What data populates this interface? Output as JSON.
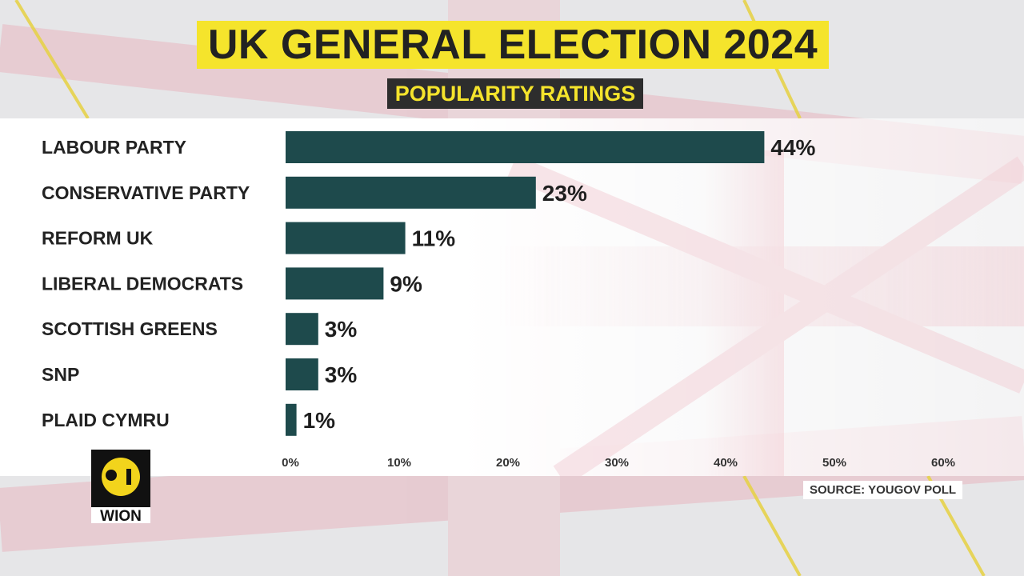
{
  "header": {
    "title": "UK GENERAL ELECTION 2024",
    "subtitle": "POPULARITY RATINGS"
  },
  "chart_data": {
    "type": "bar",
    "orientation": "horizontal",
    "title": "UK GENERAL ELECTION 2024",
    "subtitle": "POPULARITY RATINGS",
    "categories": [
      "LABOUR PARTY",
      "CONSERVATIVE PARTY",
      "REFORM UK",
      "LIBERAL DEMOCRATS",
      "SCOTTISH GREENS",
      "SNP",
      "PLAID CYMRU"
    ],
    "values": [
      44,
      23,
      11,
      9,
      3,
      3,
      1
    ],
    "value_labels": [
      "44%",
      "23%",
      "11%",
      "9%",
      "3%",
      "3%",
      "1%"
    ],
    "xlim": [
      0,
      60
    ],
    "ticks": [
      0,
      10,
      20,
      30,
      40,
      50,
      60
    ],
    "tick_labels": [
      "0%",
      "10%",
      "20%",
      "30%",
      "40%",
      "50%",
      "60%"
    ],
    "xlabel": "",
    "ylabel": "",
    "grid": false,
    "bar_color": "#1e4a4c"
  },
  "footer": {
    "source": "SOURCE: YOUGOV POLL",
    "logo_text": "WION",
    "logo_icon": "wion-logo-icon"
  },
  "colors": {
    "title_bg": "#f5e42c",
    "subtitle_bg": "#2d2d2d",
    "bar": "#1e4a4c",
    "logo_yellow": "#f2d41c"
  }
}
